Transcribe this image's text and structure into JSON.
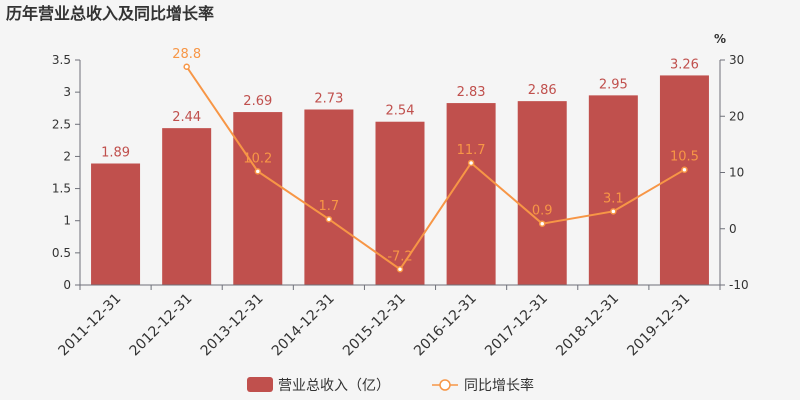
{
  "title": "历年营业总收入及同比增长率",
  "right_axis_unit": "%",
  "colors": {
    "bar": "#c0504d",
    "line": "#f79646",
    "text": "#333333",
    "axis": "#6e7079",
    "background": "#f5f5f5"
  },
  "legend": {
    "bar_label": "营业总收入（亿）",
    "line_label": "同比增长率"
  },
  "chart_data": {
    "type": "bar",
    "categories": [
      "2011-12-31",
      "2012-12-31",
      "2013-12-31",
      "2014-12-31",
      "2015-12-31",
      "2016-12-31",
      "2017-12-31",
      "2018-12-31",
      "2019-12-31"
    ],
    "series": [
      {
        "name": "营业总收入（亿）",
        "type": "bar",
        "axis": "left",
        "values": [
          1.89,
          2.44,
          2.69,
          2.73,
          2.54,
          2.83,
          2.86,
          2.95,
          3.26
        ],
        "labels": [
          "1.89",
          "2.44",
          "2.69",
          "2.73",
          "2.54",
          "2.83",
          "2.86",
          "2.95",
          "3.26"
        ]
      },
      {
        "name": "同比增长率",
        "type": "line",
        "axis": "right",
        "values": [
          null,
          28.8,
          10.2,
          1.7,
          -7.2,
          11.7,
          0.9,
          3.1,
          10.5
        ],
        "labels": [
          "",
          "28.8",
          "10.2",
          "1.7",
          "-7.2",
          "11.7",
          "0.9",
          "3.1",
          "10.5"
        ]
      }
    ],
    "left_axis": {
      "min": 0,
      "max": 3.5,
      "ticks": [
        "0",
        "0.5",
        "1",
        "1.5",
        "2",
        "2.5",
        "3",
        "3.5"
      ]
    },
    "right_axis": {
      "min": -10,
      "max": 30,
      "ticks": [
        "-10",
        "0",
        "10",
        "20",
        "30"
      ]
    },
    "grid": false,
    "legend_position": "bottom-center"
  }
}
